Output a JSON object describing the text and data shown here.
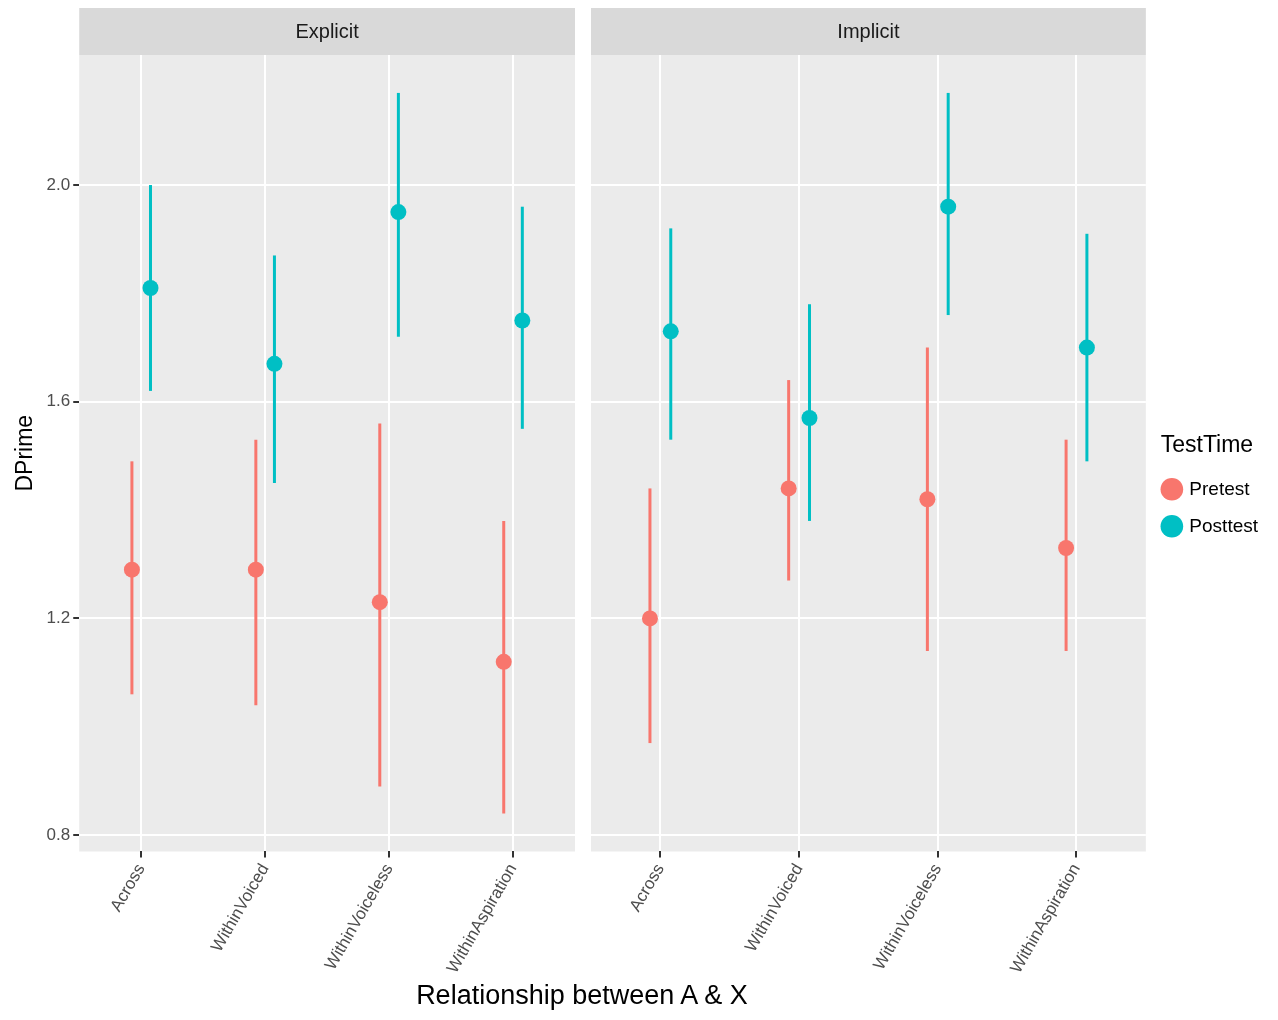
{
  "chart_data": [
    {
      "type": "scatter",
      "title": "Explicit",
      "xlabel": "Relationship between A & X",
      "ylabel": "DPrime",
      "categories": [
        "Across",
        "WithinVoiced",
        "WithinVoiceless",
        "WithinAspiration"
      ],
      "series": [
        {
          "color": "#f8766d",
          "values": [
            1.29,
            1.29,
            1.23,
            1.12
          ],
          "errors": [
            [
              1.06,
              1.49
            ],
            [
              1.04,
              1.53
            ],
            [
              0.89,
              1.56
            ],
            [
              0.84,
              1.38
            ]
          ]
        },
        {
          "color": "#00bfc4",
          "values": [
            1.81,
            1.67,
            1.95,
            1.75
          ],
          "errors": [
            [
              1.62,
              2.0
            ],
            [
              1.45,
              1.87
            ],
            [
              1.72,
              2.17
            ],
            [
              1.55,
              1.96
            ]
          ]
        }
      ],
      "ylim": [
        0.77,
        2.24
      ],
      "yticks": [
        0.8,
        1.2,
        1.6,
        {
          "value": 2,
          "label": "2.0"
        }
      ],
      "grid": true,
      "marker": "circle",
      "legend": false
    },
    {
      "type": "scatter",
      "title": "Implicit",
      "legend_title": "TestTime",
      "categories": [
        "Across",
        "WithinVoiced",
        "WithinVoiceless",
        "WithinAspiration"
      ],
      "series": [
        {
          "name": "Pretest",
          "color": "#f8766d",
          "values": [
            1.2,
            1.44,
            1.42,
            1.33
          ],
          "errors": [
            [
              0.97,
              1.44
            ],
            [
              1.27,
              1.64
            ],
            [
              1.14,
              1.7
            ],
            [
              1.14,
              1.53
            ]
          ]
        },
        {
          "name": "Posttest",
          "color": "#00bfc4",
          "values": [
            1.73,
            1.57,
            1.96,
            1.7
          ],
          "errors": [
            [
              1.53,
              1.92
            ],
            [
              1.38,
              1.78
            ],
            [
              1.76,
              2.17
            ],
            [
              1.49,
              1.91
            ]
          ]
        }
      ],
      "ylim": [
        0.77,
        2.24
      ],
      "yticks": [
        0.8,
        1.2,
        1.6,
        2
      ],
      "tick_labels": "x",
      "grid": true,
      "marker": "circle",
      "legend": "right"
    }
  ]
}
